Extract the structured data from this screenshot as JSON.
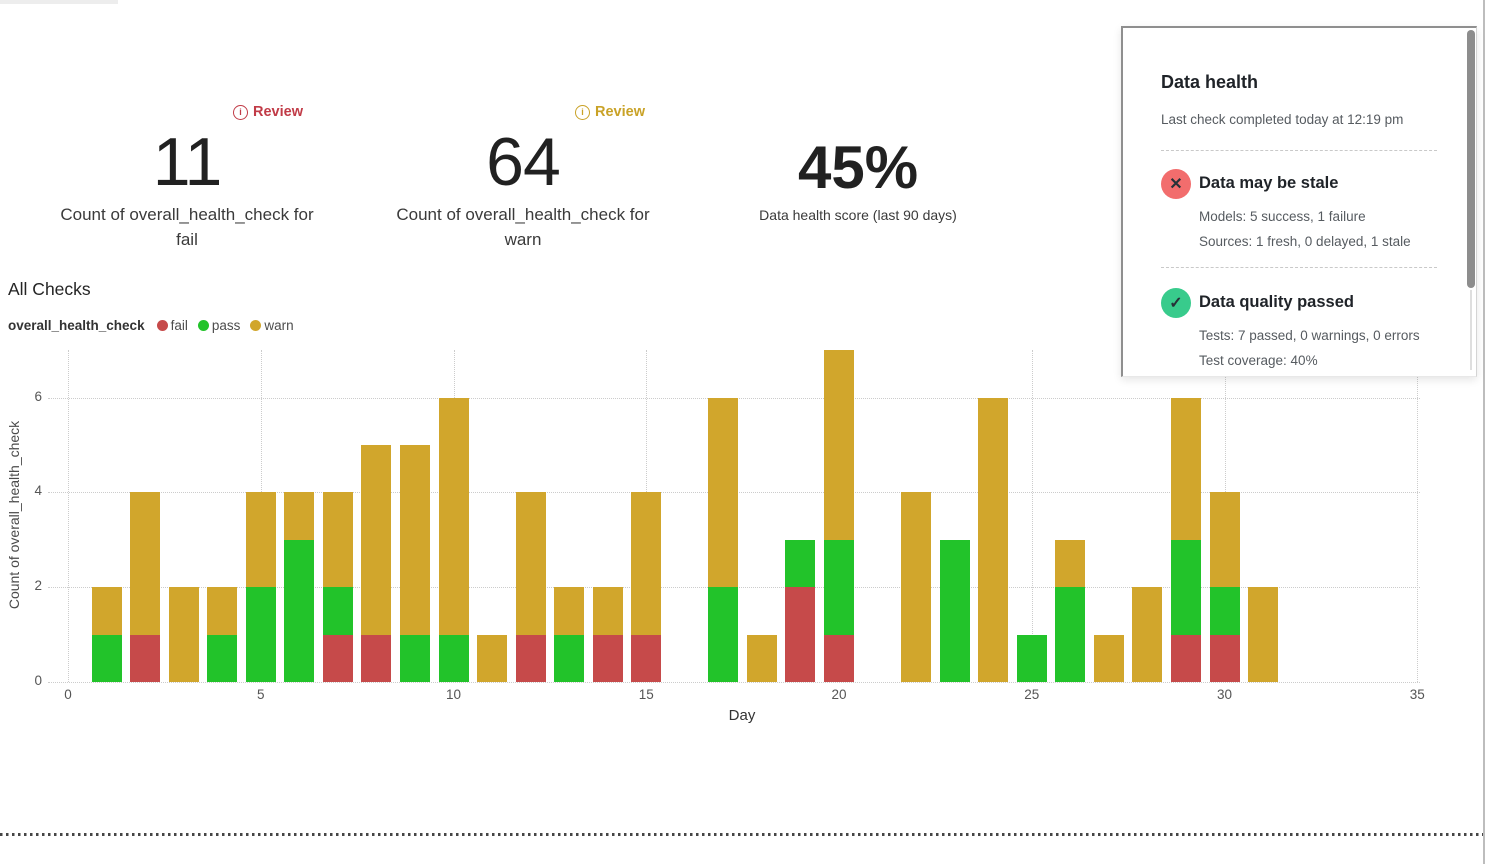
{
  "metrics": [
    {
      "badge": "Review",
      "badge_color": "#c13b47",
      "value": "11",
      "label": "Count of overall_health_check for fail"
    },
    {
      "badge": "Review",
      "badge_color": "#c9a227",
      "value": "64",
      "label": "Count of overall_health_check for warn"
    },
    {
      "value": "45%",
      "label": "Data health score (last 90 days)"
    }
  ],
  "chart_data": {
    "type": "bar",
    "stacked": true,
    "title": "All Checks",
    "series_label": "overall_health_check",
    "xlabel": "Day",
    "ylabel": "Count of overall_health_check",
    "xlim": [
      0,
      35
    ],
    "ylim": [
      0,
      7
    ],
    "x_ticks": [
      0,
      5,
      10,
      15,
      20,
      25,
      30,
      35
    ],
    "y_ticks": [
      0,
      2,
      4,
      6
    ],
    "grid": "dotted",
    "legend_position": "top-left",
    "legend": [
      {
        "name": "fail",
        "color": "#c64a4a"
      },
      {
        "name": "pass",
        "color": "#22c32a"
      },
      {
        "name": "warn",
        "color": "#d1a62c"
      }
    ],
    "stack_order": [
      "fail",
      "pass",
      "warn"
    ],
    "days": [
      {
        "day": 1,
        "fail": 0,
        "pass": 1,
        "warn": 1
      },
      {
        "day": 2,
        "fail": 1,
        "pass": 0,
        "warn": 3
      },
      {
        "day": 3,
        "fail": 0,
        "pass": 0,
        "warn": 2
      },
      {
        "day": 4,
        "fail": 0,
        "pass": 1,
        "warn": 1
      },
      {
        "day": 5,
        "fail": 0,
        "pass": 2,
        "warn": 2
      },
      {
        "day": 6,
        "fail": 0,
        "pass": 3,
        "warn": 1
      },
      {
        "day": 7,
        "fail": 1,
        "pass": 1,
        "warn": 2
      },
      {
        "day": 8,
        "fail": 1,
        "pass": 0,
        "warn": 4
      },
      {
        "day": 9,
        "fail": 0,
        "pass": 1,
        "warn": 4
      },
      {
        "day": 10,
        "fail": 0,
        "pass": 1,
        "warn": 5
      },
      {
        "day": 11,
        "fail": 0,
        "pass": 0,
        "warn": 1
      },
      {
        "day": 12,
        "fail": 1,
        "pass": 0,
        "warn": 3
      },
      {
        "day": 13,
        "fail": 0,
        "pass": 1,
        "warn": 1
      },
      {
        "day": 14,
        "fail": 1,
        "pass": 0,
        "warn": 1
      },
      {
        "day": 15,
        "fail": 1,
        "pass": 0,
        "warn": 3
      },
      {
        "day": 17,
        "fail": 0,
        "pass": 2,
        "warn": 4
      },
      {
        "day": 18,
        "fail": 0,
        "pass": 0,
        "warn": 1
      },
      {
        "day": 19,
        "fail": 2,
        "pass": 1,
        "warn": 0
      },
      {
        "day": 20,
        "fail": 1,
        "pass": 2,
        "warn": 4
      },
      {
        "day": 22,
        "fail": 0,
        "pass": 0,
        "warn": 4
      },
      {
        "day": 23,
        "fail": 0,
        "pass": 3,
        "warn": 0
      },
      {
        "day": 24,
        "fail": 0,
        "pass": 0,
        "warn": 6
      },
      {
        "day": 25,
        "fail": 0,
        "pass": 1,
        "warn": 0
      },
      {
        "day": 26,
        "fail": 0,
        "pass": 2,
        "warn": 1
      },
      {
        "day": 27,
        "fail": 0,
        "pass": 0,
        "warn": 1
      },
      {
        "day": 28,
        "fail": 0,
        "pass": 0,
        "warn": 2
      },
      {
        "day": 29,
        "fail": 1,
        "pass": 2,
        "warn": 3
      },
      {
        "day": 30,
        "fail": 1,
        "pass": 1,
        "warn": 2
      },
      {
        "day": 31,
        "fail": 0,
        "pass": 0,
        "warn": 2
      }
    ]
  },
  "health_panel": {
    "title": "Data health",
    "subtitle": "Last check completed today at 12:19 pm",
    "sections": [
      {
        "icon": "x-circle-icon",
        "icon_bg": "#f26d6d",
        "icon_glyph": "✕",
        "title": "Data may be stale",
        "lines": [
          "Models: 5 success, 1 failure",
          "Sources: 1 fresh, 0 delayed, 1 stale"
        ]
      },
      {
        "icon": "check-circle-icon",
        "icon_bg": "#38cb8c",
        "icon_glyph": "✓",
        "title": "Data quality passed",
        "lines": [
          "Tests: 7 passed, 0 warnings, 0 errors",
          "Test coverage: 40%"
        ]
      }
    ]
  }
}
